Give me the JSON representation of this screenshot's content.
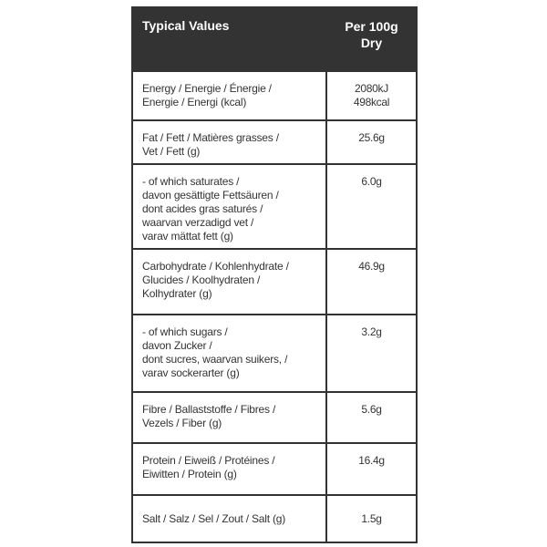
{
  "header": {
    "label": "Typical Values",
    "value": "Per 100g\nDry"
  },
  "rows": [
    {
      "label": "Energy / Energie / Énergie /\nEnergie / Energi (kcal)",
      "value": "2080kJ\n498kcal"
    },
    {
      "label": "Fat / Fett / Matières grasses /\nVet / Fett (g)",
      "value": "25.6g"
    },
    {
      "label": "- of which saturates /\ndavon gesättigte Fettsäuren /\ndont acides gras saturés /\nwaarvan verzadigd vet /\nvarav mättat fett (g)",
      "value": "6.0g"
    },
    {
      "label": "Carbohydrate / Kohlenhydrate /\nGlucides / Koolhydraten /\nKolhydrater (g)",
      "value": "46.9g"
    },
    {
      "label": "- of which sugars /\ndavon Zucker /\ndont sucres,  waarvan suikers, /\nvarav sockerarter (g)",
      "value": "3.2g"
    },
    {
      "label": "Fibre / Ballaststoffe / Fibres /\nVezels / Fiber (g)",
      "value": "5.6g"
    },
    {
      "label": "Protein / Eiweiß / Protéines /\nEiwitten / Protein (g)",
      "value": "16.4g"
    },
    {
      "label": "Salt / Salz / Sel / Zout / Salt (g)",
      "value": "1.5g"
    }
  ]
}
